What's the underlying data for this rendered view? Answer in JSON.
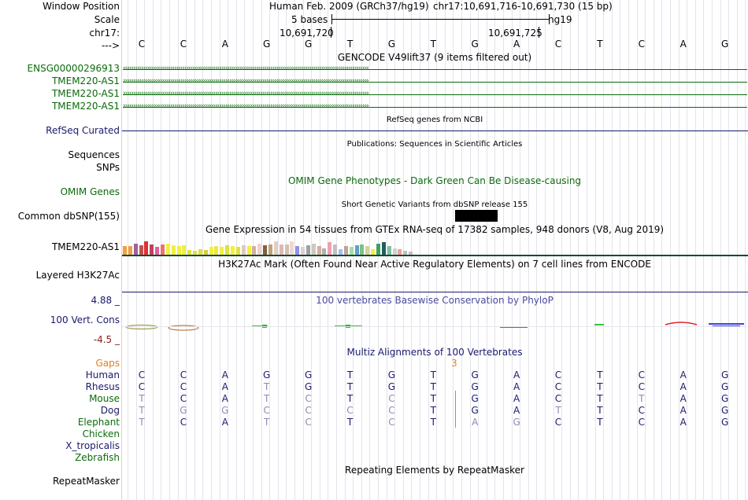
{
  "header": {
    "labels": {
      "window_position": "Window Position",
      "scale": "Scale",
      "chrom": "chr17:",
      "arrow": "--->"
    },
    "assembly": "Human Feb. 2009 (GRCh37/hg19)",
    "position": "chr17:10,691,716-10,691,730 (15 bp)",
    "scale_text": "5 bases",
    "assembly_short": "hg19",
    "coord_left": "10,691,720",
    "coord_right": "10,691,725",
    "bases": [
      "C",
      "C",
      "A",
      "G",
      "G",
      "T",
      "G",
      "T",
      "G",
      "A",
      "C",
      "T",
      "C",
      "A",
      "G"
    ]
  },
  "tracks": {
    "gencode": {
      "title": "GENCODE V49lift37 (9 items filtered out)",
      "items": [
        {
          "label": "ENSG00000296913",
          "strand": "‹"
        },
        {
          "label": "TMEM220-AS1",
          "strand": "›"
        },
        {
          "label": "TMEM220-AS1",
          "strand": "›"
        },
        {
          "label": "TMEM220-AS1",
          "strand": "›"
        }
      ],
      "color": "#0b6b0b"
    },
    "refseq": {
      "label": "RefSeq Curated",
      "title": "RefSeq genes from NCBI",
      "color": "#1a1a6e"
    },
    "publications": {
      "title": "Publications: Sequences in Scientific Articles",
      "label_sequences": "Sequences",
      "label_snps": "SNPs"
    },
    "omim": {
      "label": "OMIM Genes",
      "title": "OMIM Gene Phenotypes - Dark Green Can Be Disease-causing",
      "color": "#0b6b0b"
    },
    "dbsnp": {
      "label": "Common dbSNP(155)",
      "title": "Short Genetic Variants from dbSNP release 155"
    },
    "gtex": {
      "label": "TMEM220-AS1",
      "title": "Gene Expression in 54 tissues from GTEx RNA-seq of 17382 samples, 948 donors (V8, Aug 2019)",
      "bar_levels": [
        0.45,
        0.45,
        0.6,
        0.5,
        0.7,
        0.55,
        0.4,
        0.55,
        0.6,
        0.5,
        0.45,
        0.5,
        0.25,
        0.2,
        0.3,
        0.25,
        0.4,
        0.45,
        0.4,
        0.5,
        0.45,
        0.4,
        0.5,
        0.45,
        0.45,
        0.6,
        0.5,
        0.55,
        0.7,
        0.55,
        0.55,
        0.7,
        0.45,
        0.4,
        0.5,
        0.6,
        0.45,
        0.35,
        0.65,
        0.55,
        0.3,
        0.45,
        0.4,
        0.5,
        0.55,
        0.45,
        0.3,
        0.6,
        0.65,
        0.45,
        0.35,
        0.3,
        0.2,
        0.15
      ],
      "bar_colors": [
        "#f0a040",
        "#f0a040",
        "#a060a0",
        "#c05050",
        "#e03030",
        "#c04060",
        "#e060a0",
        "#f07070",
        "#f0f040",
        "#f0f040",
        "#f0f040",
        "#f0f040",
        "#e0e040",
        "#e0e040",
        "#e0e040",
        "#d0d040",
        "#f0f040",
        "#e8e840",
        "#f0f040",
        "#e0e040",
        "#f0f040",
        "#e0e040",
        "#e0c8c0",
        "#f0f040",
        "#d0b0a0",
        "#f0d0d0",
        "#806040",
        "#c0a080",
        "#e0d0c0",
        "#e0b8b0",
        "#d0c0b0",
        "#f0d8d0",
        "#9090f0",
        "#e0d0d0",
        "#a0a0a0",
        "#d0c8c0",
        "#d0b0a0",
        "#b0b0b0",
        "#f0a0b0",
        "#c0c0c0",
        "#a0c0f0",
        "#c0a0a0",
        "#a0e0a0",
        "#60a0d0",
        "#80c080",
        "#d0d0a0",
        "#f0f040",
        "#40a060",
        "#206060",
        "#80c0a0",
        "#d0d0d0",
        "#f0a0a0",
        "#c0c0c0",
        "#c0c0c0"
      ]
    },
    "h3k27ac": {
      "label": "Layered H3K27Ac",
      "title": "H3K27Ac Mark (Often Found Near Active Regulatory Elements) on 7 cell lines from ENCODE"
    },
    "phylop": {
      "label": "100 Vert. Cons",
      "max": "4.88 _",
      "min": "-4.5 _",
      "title": "100 vertebrates Basewise Conservation by PhyloP",
      "title_color": "#4a4aa0",
      "max_color": "#1a1a6e",
      "min_color": "#8b2020"
    },
    "multiz": {
      "title": "Multiz Alignments of 100 Vertebrates",
      "gaps_label": "Gaps",
      "gaps_value": "3",
      "gaps_color": "#e08020",
      "species": [
        {
          "name": "Human",
          "color": "#1a1a6e",
          "seq": [
            "C",
            "C",
            "A",
            "G",
            "G",
            "T",
            "G",
            "T",
            "G",
            "A",
            "C",
            "T",
            "C",
            "A",
            "G"
          ],
          "dim": [
            0,
            0,
            0,
            0,
            0,
            0,
            0,
            0,
            0,
            0,
            0,
            0,
            0,
            0,
            0
          ]
        },
        {
          "name": "Rhesus",
          "color": "#1a1a6e",
          "seq": [
            "C",
            "C",
            "A",
            "T",
            "G",
            "T",
            "G",
            "T",
            "G",
            "A",
            "C",
            "T",
            "C",
            "A",
            "G"
          ],
          "dim": [
            0,
            0,
            0,
            1,
            0,
            0,
            0,
            0,
            0,
            0,
            0,
            0,
            0,
            0,
            0
          ]
        },
        {
          "name": "Mouse",
          "color": "#0b6b0b",
          "seq": [
            "T",
            "C",
            "A",
            "T",
            "C",
            "T",
            "C",
            "T",
            "G",
            "A",
            "C",
            "T",
            "T",
            "A",
            "G"
          ],
          "dim": [
            1,
            0,
            0,
            1,
            1,
            0,
            1,
            0,
            0,
            0,
            0,
            0,
            1,
            0,
            0
          ]
        },
        {
          "name": "Dog",
          "color": "#1a1a6e",
          "seq": [
            "T",
            "G",
            "G",
            "C",
            "C",
            "C",
            "C",
            "T",
            "G",
            "A",
            "T",
            "T",
            "C",
            "A",
            "G"
          ],
          "dim": [
            1,
            1,
            1,
            1,
            1,
            1,
            1,
            0,
            0,
            0,
            1,
            0,
            0,
            0,
            0
          ]
        },
        {
          "name": "Elephant",
          "color": "#0b6b0b",
          "seq": [
            "T",
            "C",
            "A",
            "T",
            "C",
            "T",
            "C",
            "T",
            "A",
            "G",
            "C",
            "T",
            "C",
            "A",
            "G"
          ],
          "dim": [
            1,
            0,
            0,
            1,
            1,
            0,
            1,
            0,
            1,
            1,
            0,
            0,
            0,
            0,
            0
          ]
        },
        {
          "name": "Chicken",
          "color": "#0b6b0b",
          "seq": [],
          "dim": []
        },
        {
          "name": "X_tropicalis",
          "color": "#1a1a6e",
          "seq": [],
          "dim": []
        },
        {
          "name": "Zebrafish",
          "color": "#0b6b0b",
          "seq": [],
          "dim": []
        }
      ]
    },
    "repeatmasker": {
      "label": "RepeatMasker",
      "title": "Repeating Elements by RepeatMasker"
    }
  }
}
